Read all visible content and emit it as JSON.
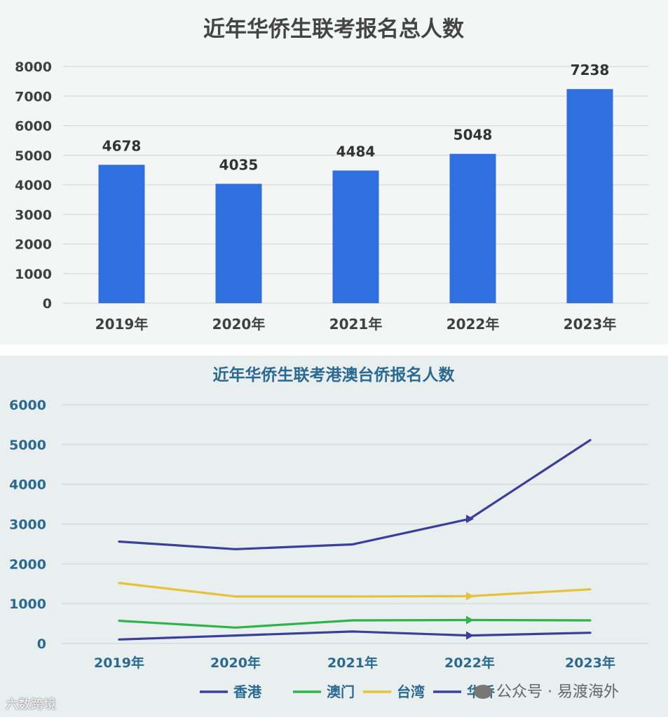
{
  "chart_data": [
    {
      "type": "bar",
      "title": "近年华侨生联考报名总人数",
      "categories": [
        "2019年",
        "2020年",
        "2021年",
        "2022年",
        "2023年"
      ],
      "values": [
        4678,
        4035,
        4484,
        5048,
        7238
      ],
      "data_labels": [
        "4678",
        "4035",
        "4484",
        "5048",
        "7238"
      ],
      "ylim": [
        0,
        8000
      ],
      "yticks": [
        "0",
        "1000",
        "2000",
        "3000",
        "4000",
        "5000",
        "6000",
        "7000",
        "8000"
      ],
      "grid": true,
      "colors": {
        "bar": "#2f6fe0",
        "grid": "#d8d8d8",
        "text": "#404040"
      }
    },
    {
      "type": "line",
      "title": "近年华侨生联考港澳台侨报名人数",
      "categories": [
        "2019年",
        "2020年",
        "2021年",
        "2022年",
        "2023年"
      ],
      "ylim": [
        0,
        6000
      ],
      "yticks": [
        "0",
        "1000",
        "2000",
        "3000",
        "4000",
        "5000",
        "6000"
      ],
      "grid": true,
      "legend_position": "bottom",
      "series": [
        {
          "name": "香港",
          "values": [
            100,
            200,
            300,
            200,
            270
          ],
          "color": "#3a3f9a"
        },
        {
          "name": "澳门",
          "values": [
            570,
            400,
            580,
            590,
            580
          ],
          "color": "#2fb34a"
        },
        {
          "name": "台湾",
          "values": [
            1520,
            1180,
            1180,
            1190,
            1360
          ],
          "color": "#e6c23a"
        },
        {
          "name": "华侨",
          "values": [
            2560,
            2370,
            2490,
            3130,
            5110
          ],
          "color": "#3b3f9c"
        }
      ],
      "colors": {
        "title": "#2a6a92",
        "axis": "#2a6a92",
        "grid": "#d2d6d6"
      }
    }
  ],
  "watermarks": {
    "left": "六数跨境",
    "right": "公众号 · 易渡海外"
  }
}
